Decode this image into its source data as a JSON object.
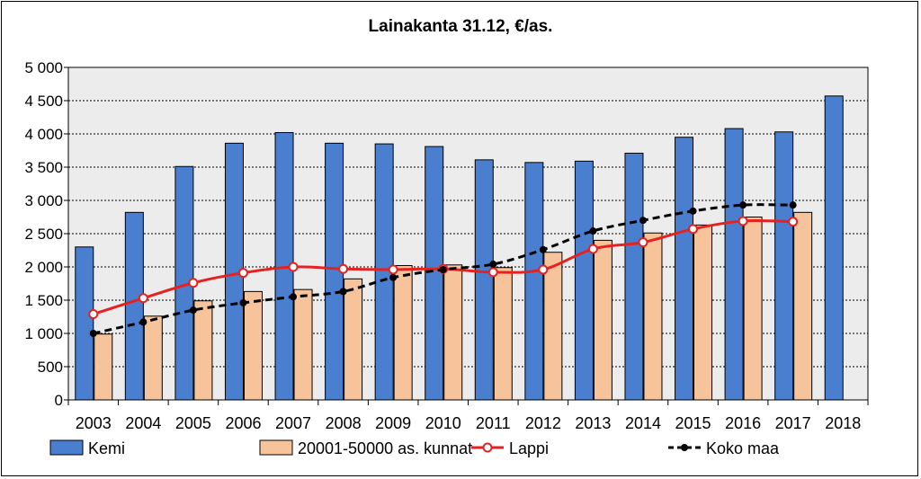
{
  "chart_data": {
    "type": "bar",
    "title": "Lainakanta 31.12, €/as.",
    "xlabel": "",
    "ylabel": "",
    "ylim": [
      0,
      5000
    ],
    "ytick_step": 500,
    "ytick_labels": [
      "0",
      "500",
      "1 000",
      "1 500",
      "2 000",
      "2 500",
      "3 000",
      "3 500",
      "4 000",
      "4 500",
      "5 000"
    ],
    "grid": true,
    "legend_position": "bottom",
    "categories": [
      "2003",
      "2004",
      "2005",
      "2006",
      "2007",
      "2008",
      "2009",
      "2010",
      "2011",
      "2012",
      "2013",
      "2014",
      "2015",
      "2016",
      "2017",
      "2018"
    ],
    "series": [
      {
        "name": "Kemi",
        "kind": "bar",
        "color": "#4a7fcf",
        "values": [
          2300,
          2820,
          3510,
          3860,
          4020,
          3860,
          3850,
          3810,
          3610,
          3570,
          3590,
          3710,
          3950,
          4080,
          4030,
          4570
        ]
      },
      {
        "name": "20001-50000 as. kunnat",
        "kind": "bar",
        "color": "#f7c39a",
        "values": [
          990,
          1260,
          1490,
          1630,
          1660,
          1820,
          2020,
          2030,
          1990,
          2220,
          2400,
          2510,
          2630,
          2750,
          2820,
          null
        ]
      },
      {
        "name": "Lappi",
        "kind": "line",
        "color": "#e52222",
        "marker": "open-circle",
        "dash": "solid",
        "values": [
          1290,
          1530,
          1760,
          1910,
          2000,
          1970,
          1960,
          1970,
          1920,
          1960,
          2270,
          2370,
          2570,
          2690,
          2680,
          null
        ]
      },
      {
        "name": "Koko maa",
        "kind": "line",
        "color": "#000000",
        "marker": "filled-circle",
        "dash": "dashed",
        "values": [
          1000,
          1170,
          1350,
          1460,
          1550,
          1630,
          1840,
          1960,
          2040,
          2260,
          2540,
          2700,
          2840,
          2930,
          2930,
          null
        ]
      }
    ]
  }
}
